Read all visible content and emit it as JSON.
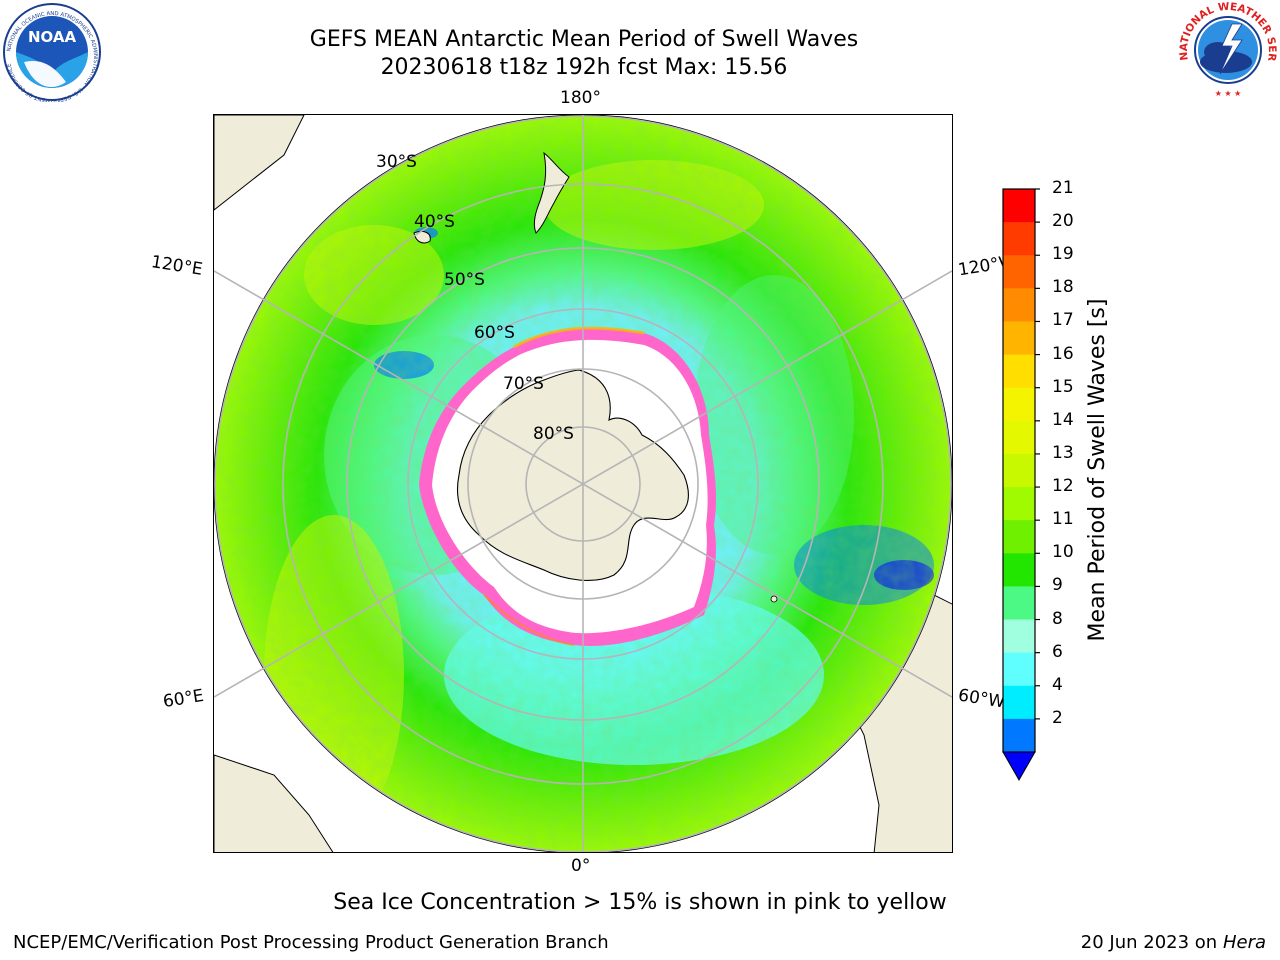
{
  "title": {
    "line1": "GEFS MEAN Antarctic Mean Period of Swell Waves",
    "line2": "20230618 t18z 192h fcst   Max: 15.56"
  },
  "logos": {
    "left": {
      "name": "noaa-logo",
      "text": "NOAA",
      "ring_text": "NATIONAL OCEANIC AND ATMOSPHERIC ADMINISTRATION · U.S. DEPARTMENT OF COMMERCE"
    },
    "right": {
      "name": "nws-logo",
      "ring_text": "NATIONAL WEATHER SERVICE"
    }
  },
  "map": {
    "projection": "south-polar-stereographic",
    "meridian_labels": {
      "top": "180°",
      "bottom": "0°",
      "left_upper": "120°E",
      "left_lower": "60°E",
      "right_upper": "120°W",
      "right_lower": "60°W"
    },
    "parallel_labels": [
      "30°S",
      "40°S",
      "50°S",
      "60°S",
      "70°S",
      "80°S"
    ],
    "grid": true,
    "colors": {
      "land": "#efecda",
      "grid": "#b5b5b5",
      "coast": "#000000"
    }
  },
  "colorbar": {
    "label": "Mean Period of Swell Waves [s]",
    "ticks": [
      "21",
      "20",
      "19",
      "18",
      "17",
      "16",
      "15",
      "14",
      "13",
      "12",
      "11",
      "10",
      "9",
      "8",
      "6",
      "4",
      "2"
    ],
    "colors": [
      "#ff0000",
      "#ff3b00",
      "#ff6400",
      "#ff8c00",
      "#ffb400",
      "#ffde00",
      "#f4f400",
      "#e4f800",
      "#c9f900",
      "#a0fb00",
      "#6ef000",
      "#22e600",
      "#4cf985",
      "#a0ffdf",
      "#60ffff",
      "#00ecff",
      "#0078ff"
    ],
    "extend_color": "#0000ff",
    "orientation": "vertical",
    "placement": "right"
  },
  "note": "Sea Ice Concentration > 15% is shown in pink to yellow",
  "footer": {
    "left": "NCEP/EMC/Verification Post Processing Product Generation Branch",
    "right_date": "20 Jun 2023 on",
    "right_host": "Hera"
  }
}
